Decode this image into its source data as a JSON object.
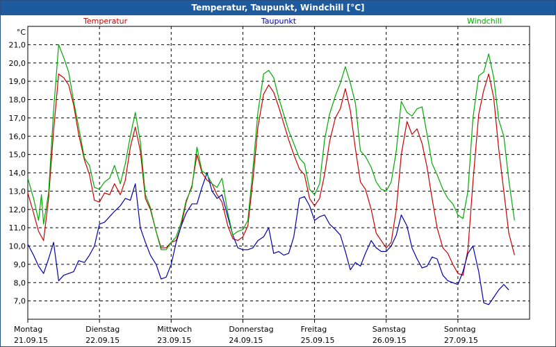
{
  "window": {
    "title": "Temperatur, Taupunkt, Windchill [°C]"
  },
  "chart_data": {
    "type": "line",
    "title": "Temperatur, Taupunkt, Windchill [°C]",
    "ylabel": "°C",
    "ylim": [
      6.0,
      22.0
    ],
    "xlim": [
      0,
      7
    ],
    "grid": true,
    "yticks": [
      "7,0",
      "8,0",
      "9,0",
      "10,0",
      "11,0",
      "12,0",
      "13,0",
      "14,0",
      "15,0",
      "16,0",
      "17,0",
      "18,0",
      "19,0",
      "20,0",
      "21,0"
    ],
    "ytick_values": [
      7,
      8,
      9,
      10,
      11,
      12,
      13,
      14,
      15,
      16,
      17,
      18,
      19,
      20,
      21
    ],
    "xticks": [
      {
        "day": "Montag",
        "date": "21.09.15",
        "x": 0
      },
      {
        "day": "Dienstag",
        "date": "22.09.15",
        "x": 1
      },
      {
        "day": "Mittwoch",
        "date": "23.09.15",
        "x": 2
      },
      {
        "day": "Donnerstag",
        "date": "24.09.15",
        "x": 3
      },
      {
        "day": "Freitag",
        "date": "25.09.15",
        "x": 4
      },
      {
        "day": "Samstag",
        "date": "26.09.15",
        "x": 5
      },
      {
        "day": "Sonntag",
        "date": "27.09.15",
        "x": 6
      }
    ],
    "series": [
      {
        "name": "Temperatur",
        "color": "#cc0000",
        "points": [
          [
            0,
            12.9
          ],
          [
            0.08,
            11.8
          ],
          [
            0.15,
            10.8
          ],
          [
            0.22,
            10.3
          ],
          [
            0.29,
            12.6
          ],
          [
            0.36,
            16.3
          ],
          [
            0.43,
            19.4
          ],
          [
            0.5,
            19.2
          ],
          [
            0.57,
            18.8
          ],
          [
            0.64,
            17.7
          ],
          [
            0.71,
            16.1
          ],
          [
            0.79,
            14.7
          ],
          [
            0.86,
            13.9
          ],
          [
            0.93,
            12.5
          ],
          [
            1.0,
            12.4
          ],
          [
            1.07,
            12.9
          ],
          [
            1.14,
            12.8
          ],
          [
            1.21,
            13.4
          ],
          [
            1.29,
            12.8
          ],
          [
            1.36,
            13.6
          ],
          [
            1.43,
            15.4
          ],
          [
            1.5,
            16.5
          ],
          [
            1.57,
            15.2
          ],
          [
            1.64,
            12.6
          ],
          [
            1.71,
            12.0
          ],
          [
            1.79,
            10.8
          ],
          [
            1.86,
            9.9
          ],
          [
            1.93,
            9.9
          ],
          [
            2.0,
            10.2
          ],
          [
            2.07,
            10.3
          ],
          [
            2.14,
            11.1
          ],
          [
            2.21,
            12.4
          ],
          [
            2.29,
            13.3
          ],
          [
            2.36,
            15.0
          ],
          [
            2.43,
            14.0
          ],
          [
            2.5,
            13.6
          ],
          [
            2.57,
            13.4
          ],
          [
            2.64,
            12.8
          ],
          [
            2.71,
            12.4
          ],
          [
            2.79,
            11.1
          ],
          [
            2.86,
            10.4
          ],
          [
            2.93,
            10.3
          ],
          [
            3.0,
            10.5
          ],
          [
            3.07,
            11.1
          ],
          [
            3.14,
            13.6
          ],
          [
            3.21,
            16.5
          ],
          [
            3.29,
            18.3
          ],
          [
            3.36,
            18.8
          ],
          [
            3.43,
            18.4
          ],
          [
            3.5,
            17.6
          ],
          [
            3.57,
            16.7
          ],
          [
            3.64,
            15.8
          ],
          [
            3.71,
            15.0
          ],
          [
            3.79,
            14.2
          ],
          [
            3.86,
            13.9
          ],
          [
            3.93,
            12.6
          ],
          [
            4.0,
            12.2
          ],
          [
            4.07,
            12.6
          ],
          [
            4.14,
            13.9
          ],
          [
            4.21,
            15.7
          ],
          [
            4.29,
            17.0
          ],
          [
            4.36,
            17.5
          ],
          [
            4.43,
            18.6
          ],
          [
            4.5,
            17.4
          ],
          [
            4.57,
            15.3
          ],
          [
            4.64,
            13.5
          ],
          [
            4.71,
            13.1
          ],
          [
            4.79,
            12.0
          ],
          [
            4.86,
            10.7
          ],
          [
            4.93,
            10.3
          ],
          [
            5.0,
            9.9
          ],
          [
            5.07,
            10.2
          ],
          [
            5.14,
            12.0
          ],
          [
            5.21,
            15.0
          ],
          [
            5.29,
            16.8
          ],
          [
            5.36,
            16.1
          ],
          [
            5.43,
            16.4
          ],
          [
            5.5,
            15.6
          ],
          [
            5.57,
            14.3
          ],
          [
            5.64,
            12.6
          ],
          [
            5.71,
            11.0
          ],
          [
            5.79,
            9.9
          ],
          [
            5.86,
            9.6
          ],
          [
            5.93,
            9.0
          ],
          [
            6.0,
            8.5
          ],
          [
            6.07,
            8.4
          ],
          [
            6.14,
            9.8
          ],
          [
            6.21,
            13.5
          ],
          [
            6.29,
            17.2
          ],
          [
            6.36,
            18.5
          ],
          [
            6.43,
            19.4
          ],
          [
            6.5,
            18.1
          ],
          [
            6.57,
            15.3
          ],
          [
            6.64,
            13.0
          ],
          [
            6.71,
            10.7
          ],
          [
            6.79,
            9.5
          ]
        ]
      },
      {
        "name": "Taupunkt",
        "color": "#0000b0",
        "points": [
          [
            0,
            10.1
          ],
          [
            0.08,
            9.5
          ],
          [
            0.15,
            8.9
          ],
          [
            0.22,
            8.5
          ],
          [
            0.29,
            9.3
          ],
          [
            0.36,
            10.2
          ],
          [
            0.43,
            8.1
          ],
          [
            0.5,
            8.4
          ],
          [
            0.57,
            8.5
          ],
          [
            0.64,
            8.6
          ],
          [
            0.71,
            9.2
          ],
          [
            0.79,
            9.1
          ],
          [
            0.86,
            9.5
          ],
          [
            0.93,
            10.0
          ],
          [
            1.0,
            11.2
          ],
          [
            1.07,
            11.3
          ],
          [
            1.14,
            11.6
          ],
          [
            1.21,
            11.9
          ],
          [
            1.29,
            12.2
          ],
          [
            1.36,
            12.6
          ],
          [
            1.43,
            12.5
          ],
          [
            1.5,
            13.4
          ],
          [
            1.57,
            11.0
          ],
          [
            1.64,
            10.2
          ],
          [
            1.71,
            9.5
          ],
          [
            1.79,
            9.0
          ],
          [
            1.86,
            8.2
          ],
          [
            1.93,
            8.3
          ],
          [
            2.0,
            9.0
          ],
          [
            2.07,
            10.2
          ],
          [
            2.14,
            11.1
          ],
          [
            2.21,
            11.8
          ],
          [
            2.29,
            12.3
          ],
          [
            2.36,
            12.3
          ],
          [
            2.43,
            13.2
          ],
          [
            2.5,
            14.0
          ],
          [
            2.57,
            13.0
          ],
          [
            2.64,
            12.6
          ],
          [
            2.71,
            12.8
          ],
          [
            2.79,
            11.6
          ],
          [
            2.86,
            10.6
          ],
          [
            2.93,
            9.9
          ],
          [
            3.0,
            9.8
          ],
          [
            3.07,
            9.8
          ],
          [
            3.14,
            9.9
          ],
          [
            3.21,
            10.3
          ],
          [
            3.29,
            10.5
          ],
          [
            3.36,
            11.0
          ],
          [
            3.43,
            9.6
          ],
          [
            3.5,
            9.7
          ],
          [
            3.57,
            9.5
          ],
          [
            3.64,
            9.6
          ],
          [
            3.71,
            10.5
          ],
          [
            3.79,
            12.6
          ],
          [
            3.86,
            12.7
          ],
          [
            3.93,
            12.2
          ],
          [
            4.0,
            11.4
          ],
          [
            4.07,
            11.6
          ],
          [
            4.14,
            11.7
          ],
          [
            4.21,
            11.2
          ],
          [
            4.29,
            10.9
          ],
          [
            4.36,
            10.6
          ],
          [
            4.43,
            9.7
          ],
          [
            4.5,
            8.7
          ],
          [
            4.57,
            9.1
          ],
          [
            4.64,
            8.9
          ],
          [
            4.71,
            9.6
          ],
          [
            4.79,
            10.3
          ],
          [
            4.86,
            9.9
          ],
          [
            4.93,
            9.7
          ],
          [
            5.0,
            9.7
          ],
          [
            5.07,
            10.0
          ],
          [
            5.14,
            10.6
          ],
          [
            5.21,
            11.7
          ],
          [
            5.29,
            11.1
          ],
          [
            5.36,
            9.9
          ],
          [
            5.43,
            9.3
          ],
          [
            5.5,
            8.8
          ],
          [
            5.57,
            8.9
          ],
          [
            5.64,
            9.4
          ],
          [
            5.71,
            9.3
          ],
          [
            5.79,
            8.4
          ],
          [
            5.86,
            8.1
          ],
          [
            5.93,
            8.0
          ],
          [
            6.0,
            7.9
          ],
          [
            6.07,
            8.6
          ],
          [
            6.14,
            9.6
          ],
          [
            6.21,
            10.0
          ],
          [
            6.29,
            8.6
          ],
          [
            6.36,
            6.9
          ],
          [
            6.43,
            6.8
          ],
          [
            6.5,
            7.2
          ],
          [
            6.57,
            7.6
          ],
          [
            6.64,
            7.9
          ],
          [
            6.71,
            7.6
          ]
        ]
      },
      {
        "name": "Windchill",
        "color": "#00aa00",
        "points": [
          [
            0,
            13.7
          ],
          [
            0.08,
            12.6
          ],
          [
            0.15,
            11.4
          ],
          [
            0.19,
            12.8
          ],
          [
            0.22,
            11.2
          ],
          [
            0.29,
            12.9
          ],
          [
            0.36,
            17.4
          ],
          [
            0.43,
            21.0
          ],
          [
            0.5,
            20.3
          ],
          [
            0.57,
            19.5
          ],
          [
            0.64,
            17.9
          ],
          [
            0.71,
            16.5
          ],
          [
            0.79,
            14.8
          ],
          [
            0.86,
            14.4
          ],
          [
            0.93,
            13.2
          ],
          [
            1.0,
            13.1
          ],
          [
            1.07,
            13.5
          ],
          [
            1.14,
            13.7
          ],
          [
            1.21,
            14.4
          ],
          [
            1.29,
            13.4
          ],
          [
            1.36,
            14.5
          ],
          [
            1.43,
            16.0
          ],
          [
            1.5,
            17.3
          ],
          [
            1.57,
            15.7
          ],
          [
            1.64,
            12.8
          ],
          [
            1.71,
            12.1
          ],
          [
            1.79,
            10.8
          ],
          [
            1.86,
            9.8
          ],
          [
            1.93,
            9.8
          ],
          [
            2.0,
            10.2
          ],
          [
            2.07,
            10.5
          ],
          [
            2.14,
            11.3
          ],
          [
            2.21,
            12.5
          ],
          [
            2.29,
            13.2
          ],
          [
            2.36,
            15.4
          ],
          [
            2.43,
            14.1
          ],
          [
            2.5,
            13.9
          ],
          [
            2.57,
            13.4
          ],
          [
            2.64,
            13.2
          ],
          [
            2.71,
            13.7
          ],
          [
            2.79,
            11.8
          ],
          [
            2.86,
            10.6
          ],
          [
            2.93,
            10.8
          ],
          [
            3.0,
            10.9
          ],
          [
            3.07,
            11.4
          ],
          [
            3.14,
            14.2
          ],
          [
            3.21,
            17.3
          ],
          [
            3.29,
            19.4
          ],
          [
            3.36,
            19.6
          ],
          [
            3.43,
            19.2
          ],
          [
            3.5,
            18.1
          ],
          [
            3.57,
            17.2
          ],
          [
            3.64,
            16.3
          ],
          [
            3.71,
            15.6
          ],
          [
            3.79,
            14.8
          ],
          [
            3.86,
            14.5
          ],
          [
            3.93,
            13.1
          ],
          [
            4.0,
            12.8
          ],
          [
            4.07,
            13.4
          ],
          [
            4.14,
            15.8
          ],
          [
            4.21,
            17.2
          ],
          [
            4.29,
            18.2
          ],
          [
            4.36,
            18.9
          ],
          [
            4.43,
            19.8
          ],
          [
            4.5,
            18.9
          ],
          [
            4.57,
            17.8
          ],
          [
            4.64,
            15.2
          ],
          [
            4.71,
            14.9
          ],
          [
            4.79,
            14.3
          ],
          [
            4.86,
            13.5
          ],
          [
            4.93,
            13.1
          ],
          [
            5.0,
            13.0
          ],
          [
            5.07,
            13.5
          ],
          [
            5.14,
            15.2
          ],
          [
            5.21,
            17.9
          ],
          [
            5.29,
            17.3
          ],
          [
            5.36,
            17.1
          ],
          [
            5.43,
            17.5
          ],
          [
            5.5,
            17.6
          ],
          [
            5.57,
            16.1
          ],
          [
            5.64,
            14.5
          ],
          [
            5.71,
            13.9
          ],
          [
            5.79,
            13.1
          ],
          [
            5.86,
            12.6
          ],
          [
            5.93,
            12.3
          ],
          [
            6.0,
            11.7
          ],
          [
            6.07,
            11.5
          ],
          [
            6.14,
            13.0
          ],
          [
            6.21,
            17.0
          ],
          [
            6.29,
            19.3
          ],
          [
            6.36,
            19.5
          ],
          [
            6.43,
            20.5
          ],
          [
            6.5,
            19.2
          ],
          [
            6.57,
            16.9
          ],
          [
            6.64,
            16.0
          ],
          [
            6.71,
            13.6
          ],
          [
            6.79,
            11.4
          ]
        ]
      }
    ]
  }
}
